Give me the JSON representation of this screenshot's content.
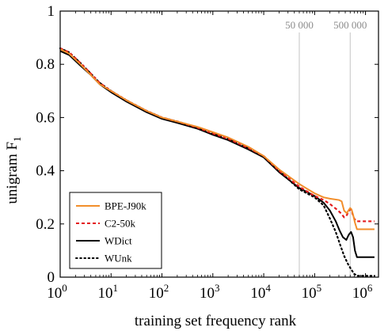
{
  "chart_data": {
    "type": "line",
    "xlabel": "training set frequency rank",
    "ylabel": "unigram F",
    "ylabel_subscript": "1",
    "xscale": "log",
    "xlim": [
      1,
      1800000
    ],
    "ylim": [
      0,
      1
    ],
    "x_ticks": [
      {
        "value": 1,
        "base": "10",
        "exp": "0"
      },
      {
        "value": 10,
        "base": "10",
        "exp": "1"
      },
      {
        "value": 100,
        "base": "10",
        "exp": "2"
      },
      {
        "value": 1000,
        "base": "10",
        "exp": "3"
      },
      {
        "value": 10000,
        "base": "10",
        "exp": "4"
      },
      {
        "value": 100000,
        "base": "10",
        "exp": "5"
      },
      {
        "value": 1000000,
        "base": "10",
        "exp": "6"
      }
    ],
    "y_ticks": [
      {
        "value": 0,
        "label": "0"
      },
      {
        "value": 0.2,
        "label": "0.2"
      },
      {
        "value": 0.4,
        "label": "0.4"
      },
      {
        "value": 0.6,
        "label": "0.6"
      },
      {
        "value": 0.8,
        "label": "0.8"
      },
      {
        "value": 1,
        "label": "1"
      }
    ],
    "reference_lines": [
      {
        "x": 50000,
        "label": "50 000"
      },
      {
        "x": 500000,
        "label": "500 000"
      }
    ],
    "legend_position": "bottom-left",
    "series": [
      {
        "name": "BPE-J90k",
        "color": "#f28e2b",
        "dash": "solid",
        "points": [
          [
            1,
            0.857
          ],
          [
            1.5,
            0.84
          ],
          [
            2.5,
            0.8
          ],
          [
            4,
            0.76
          ],
          [
            6,
            0.725
          ],
          [
            10,
            0.7
          ],
          [
            20,
            0.665
          ],
          [
            50,
            0.625
          ],
          [
            100,
            0.6
          ],
          [
            200,
            0.585
          ],
          [
            500,
            0.565
          ],
          [
            1000,
            0.545
          ],
          [
            2000,
            0.525
          ],
          [
            5000,
            0.49
          ],
          [
            10000,
            0.455
          ],
          [
            20000,
            0.405
          ],
          [
            50000,
            0.35
          ],
          [
            100000,
            0.315
          ],
          [
            150000,
            0.3
          ],
          [
            200000,
            0.295
          ],
          [
            300000,
            0.29
          ],
          [
            340000,
            0.285
          ],
          [
            380000,
            0.25
          ],
          [
            430000,
            0.24
          ],
          [
            460000,
            0.25
          ],
          [
            500000,
            0.26
          ],
          [
            530000,
            0.255
          ],
          [
            570000,
            0.235
          ],
          [
            620000,
            0.205
          ],
          [
            680000,
            0.18
          ],
          [
            1500000,
            0.18
          ]
        ]
      },
      {
        "name": "C2-50k",
        "color": "#e3191c",
        "dash": "dashed",
        "points": [
          [
            1,
            0.86
          ],
          [
            1.5,
            0.845
          ],
          [
            2.5,
            0.805
          ],
          [
            4,
            0.765
          ],
          [
            6,
            0.73
          ],
          [
            10,
            0.7
          ],
          [
            20,
            0.665
          ],
          [
            50,
            0.625
          ],
          [
            100,
            0.6
          ],
          [
            200,
            0.585
          ],
          [
            500,
            0.562
          ],
          [
            1000,
            0.54
          ],
          [
            2000,
            0.52
          ],
          [
            5000,
            0.485
          ],
          [
            10000,
            0.455
          ],
          [
            20000,
            0.4
          ],
          [
            50000,
            0.34
          ],
          [
            100000,
            0.305
          ],
          [
            150000,
            0.29
          ],
          [
            200000,
            0.275
          ],
          [
            270000,
            0.255
          ],
          [
            330000,
            0.24
          ],
          [
            380000,
            0.225
          ],
          [
            420000,
            0.23
          ],
          [
            460000,
            0.245
          ],
          [
            500000,
            0.255
          ],
          [
            540000,
            0.245
          ],
          [
            600000,
            0.22
          ],
          [
            650000,
            0.21
          ],
          [
            1500000,
            0.21
          ]
        ]
      },
      {
        "name": "WDict",
        "color": "#000000",
        "dash": "solid",
        "points": [
          [
            1,
            0.85
          ],
          [
            1.5,
            0.835
          ],
          [
            2.5,
            0.795
          ],
          [
            4,
            0.76
          ],
          [
            6,
            0.725
          ],
          [
            10,
            0.695
          ],
          [
            20,
            0.66
          ],
          [
            50,
            0.62
          ],
          [
            100,
            0.595
          ],
          [
            200,
            0.58
          ],
          [
            500,
            0.558
          ],
          [
            1000,
            0.535
          ],
          [
            2000,
            0.515
          ],
          [
            5000,
            0.48
          ],
          [
            10000,
            0.45
          ],
          [
            20000,
            0.395
          ],
          [
            50000,
            0.335
          ],
          [
            100000,
            0.305
          ],
          [
            150000,
            0.28
          ],
          [
            200000,
            0.25
          ],
          [
            260000,
            0.21
          ],
          [
            310000,
            0.175
          ],
          [
            360000,
            0.15
          ],
          [
            420000,
            0.14
          ],
          [
            470000,
            0.16
          ],
          [
            520000,
            0.17
          ],
          [
            570000,
            0.15
          ],
          [
            620000,
            0.1
          ],
          [
            680000,
            0.075
          ],
          [
            1500000,
            0.075
          ]
        ]
      },
      {
        "name": "WUnk",
        "color": "#000000",
        "dash": "dotted",
        "points": [
          [
            1,
            0.86
          ],
          [
            1.5,
            0.845
          ],
          [
            2.5,
            0.805
          ],
          [
            4,
            0.765
          ],
          [
            6,
            0.73
          ],
          [
            10,
            0.7
          ],
          [
            20,
            0.665
          ],
          [
            50,
            0.625
          ],
          [
            100,
            0.6
          ],
          [
            200,
            0.585
          ],
          [
            500,
            0.562
          ],
          [
            1000,
            0.54
          ],
          [
            2000,
            0.52
          ],
          [
            5000,
            0.485
          ],
          [
            10000,
            0.455
          ],
          [
            20000,
            0.4
          ],
          [
            50000,
            0.33
          ],
          [
            100000,
            0.3
          ],
          [
            150000,
            0.27
          ],
          [
            200000,
            0.22
          ],
          [
            260000,
            0.17
          ],
          [
            320000,
            0.12
          ],
          [
            380000,
            0.08
          ],
          [
            450000,
            0.05
          ],
          [
            520000,
            0.03
          ],
          [
            600000,
            0.012
          ],
          [
            700000,
            0.005
          ],
          [
            1500000,
            0.005
          ]
        ]
      }
    ]
  }
}
